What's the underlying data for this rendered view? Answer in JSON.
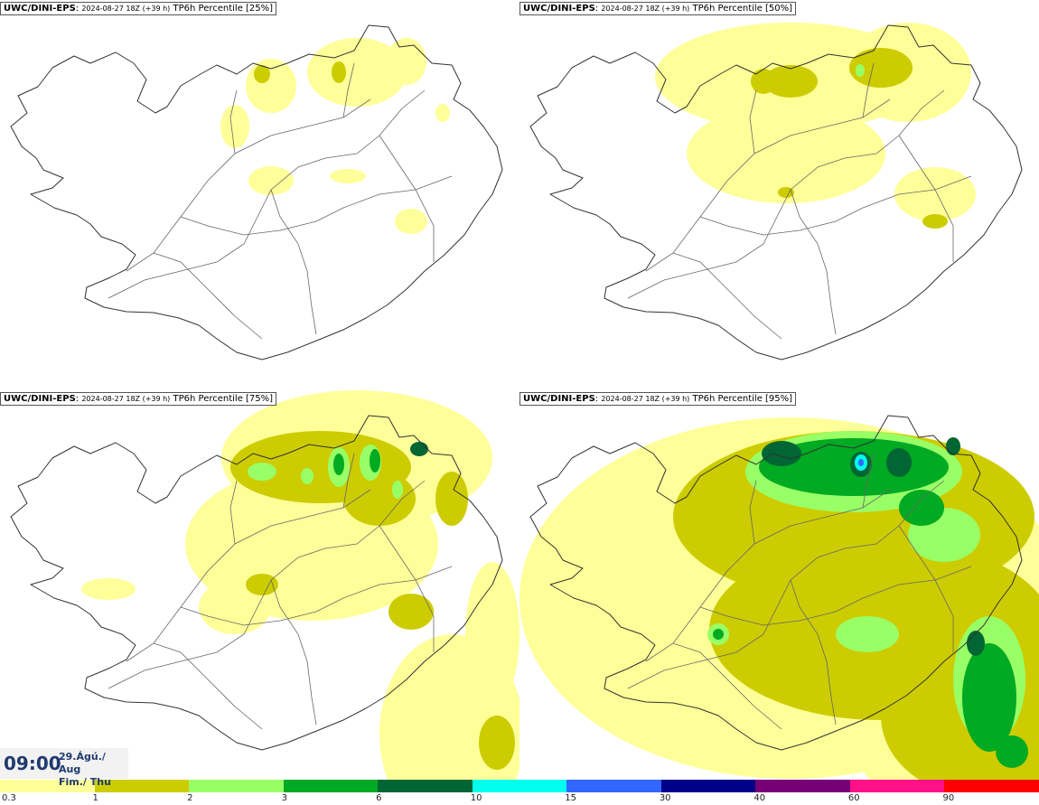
{
  "panels": [
    {
      "source": "UWC/DINI-EPS",
      "run": "2024-08-27 18Z (+39 h)",
      "field": "TP6h Percentile [25%]",
      "level": 1
    },
    {
      "source": "UWC/DINI-EPS",
      "run": "2024-08-27 18Z (+39 h)",
      "field": "TP6h Percentile [50%]",
      "level": 2
    },
    {
      "source": "UWC/DINI-EPS",
      "run": "2024-08-27 18Z (+39 h)",
      "field": "TP6h Percentile [75%]",
      "level": 3
    },
    {
      "source": "UWC/DINI-EPS",
      "run": "2024-08-27 18Z (+39 h)",
      "field": "TP6h Percentile [95%]",
      "level": 4
    }
  ],
  "valid": {
    "time": "09:00",
    "date": "29.Ágú./ Aug",
    "day": "Fim./ Thu"
  },
  "legend": {
    "colors": [
      "#ffff99",
      "#cccc00",
      "#99ff66",
      "#00aa22",
      "#006633",
      "#00ffee",
      "#3366ff",
      "#000088",
      "#770077",
      "#ff1188",
      "#ff0000"
    ],
    "ticks": [
      "0.3",
      "1",
      "2",
      "3",
      "6",
      "10",
      "15",
      "30",
      "40",
      "60",
      "90"
    ]
  }
}
